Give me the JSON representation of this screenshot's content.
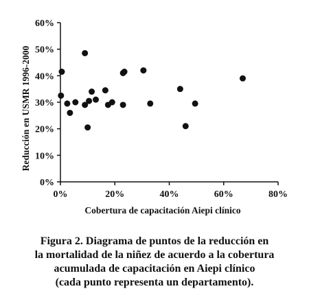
{
  "chart_data": {
    "type": "scatter",
    "title": "",
    "xlabel": "Cobertura de capacitación Aiepi clínico",
    "ylabel": "Reducción en USMR 1996-2000",
    "xlim": [
      0,
      80
    ],
    "ylim": [
      0,
      60
    ],
    "xticks": [
      "0%",
      "20%",
      "40%",
      "60%",
      "80%"
    ],
    "yticks": [
      "0%",
      "10%",
      "20%",
      "30%",
      "40%",
      "50%",
      "60%"
    ],
    "grid": false,
    "legend": "none",
    "marker_color": "#111111",
    "points": [
      {
        "x": 0.2,
        "y": 32.5
      },
      {
        "x": 0.5,
        "y": 41.5
      },
      {
        "x": 2.5,
        "y": 29.5
      },
      {
        "x": 3.5,
        "y": 26
      },
      {
        "x": 5.5,
        "y": 30
      },
      {
        "x": 9,
        "y": 48.5
      },
      {
        "x": 9,
        "y": 29
      },
      {
        "x": 10,
        "y": 20.5
      },
      {
        "x": 10.5,
        "y": 30.5
      },
      {
        "x": 11.5,
        "y": 34
      },
      {
        "x": 13,
        "y": 31
      },
      {
        "x": 16.5,
        "y": 34.5
      },
      {
        "x": 17.5,
        "y": 29
      },
      {
        "x": 19,
        "y": 30
      },
      {
        "x": 23,
        "y": 41
      },
      {
        "x": 23.5,
        "y": 41.5
      },
      {
        "x": 23,
        "y": 29
      },
      {
        "x": 30.5,
        "y": 42
      },
      {
        "x": 33,
        "y": 29.5
      },
      {
        "x": 44,
        "y": 35
      },
      {
        "x": 46,
        "y": 21
      },
      {
        "x": 49.5,
        "y": 29.5
      },
      {
        "x": 67,
        "y": 39
      }
    ]
  },
  "caption": {
    "lines": [
      "Figura 2. Diagrama de puntos de la reducción en",
      "la mortalidad de la niñez de acuerdo a la cobertura",
      "acumulada de capacitación en Aiepi clínico",
      "(cada punto representa un departamento)."
    ]
  }
}
